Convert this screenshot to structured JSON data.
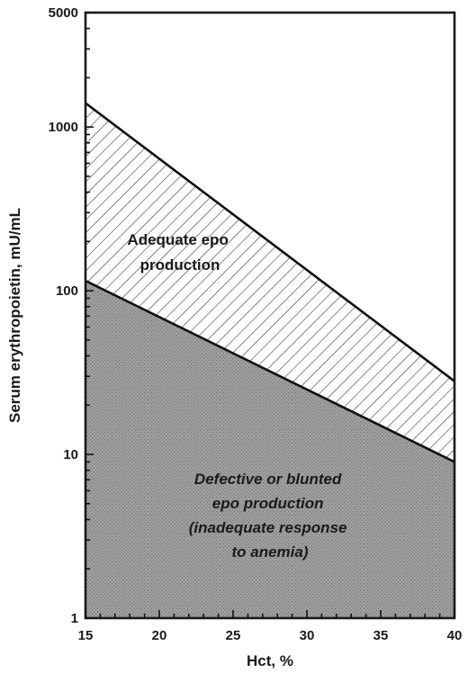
{
  "chart_data": {
    "type": "area",
    "title": "",
    "xlabel": "Hct, %",
    "ylabel": "Serum erythropoietin, mU/mL",
    "xlim": [
      15,
      40
    ],
    "ylim": [
      1,
      5000
    ],
    "yscale": "log",
    "x_ticks": [
      15,
      20,
      25,
      30,
      35,
      40
    ],
    "y_ticks": [
      1,
      10,
      100,
      1000,
      5000
    ],
    "x_tick_labels": [
      "15",
      "20",
      "25",
      "30",
      "35",
      "40"
    ],
    "y_tick_labels": [
      "1",
      "10",
      "100",
      "1000",
      "5000"
    ],
    "grid": false,
    "series": [
      {
        "x": [
          15,
          40
        ],
        "values": [
          1400,
          28
        ],
        "fill": "hatched"
      },
      {
        "x": [
          15,
          40
        ],
        "values": [
          115,
          9
        ],
        "fill": "stippled-gray"
      }
    ],
    "annotations": [
      {
        "lines": [
          "Adequate epo",
          "production"
        ],
        "style": "bold"
      },
      {
        "lines": [
          "Defective or blunted",
          "epo production",
          "(inadequate response",
          "to anemia)"
        ],
        "style": "bold-italic"
      }
    ]
  }
}
